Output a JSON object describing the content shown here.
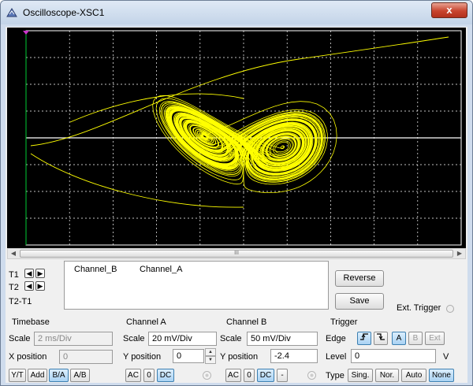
{
  "window": {
    "title": "Oscilloscope-XSC1",
    "close_label": "x"
  },
  "scope": {
    "background": "#000000",
    "trace_color": "#ffff00",
    "grid_color": "#ffffff",
    "marker_color": "#00cc33"
  },
  "scrollbar": {
    "thumb_grip": "III"
  },
  "cursors": {
    "t1_label": "T1",
    "t2_label": "T2",
    "t2t1_label": "T2-T1"
  },
  "readout": {
    "col_b": "Channel_B",
    "col_a": "Channel_A"
  },
  "buttons": {
    "reverse": "Reverse",
    "save": "Save"
  },
  "ext_trigger_label": "Ext. Trigger",
  "timebase": {
    "title": "Timebase",
    "scale_label": "Scale",
    "scale_value": "2 ms/Div",
    "xpos_label": "X position",
    "xpos_value": "0",
    "modes": [
      "Y/T",
      "Add",
      "B/A",
      "A/B"
    ]
  },
  "channel_a": {
    "title": "Channel A",
    "scale_label": "Scale",
    "scale_value": "20 mV/Div",
    "ypos_label": "Y position",
    "ypos_value": "0",
    "coupling": [
      "AC",
      "0",
      "DC"
    ]
  },
  "channel_b": {
    "title": "Channel B",
    "scale_label": "Scale",
    "scale_value": "50 mV/Div",
    "ypos_label": "Y position",
    "ypos_value": "-2.4",
    "coupling": [
      "AC",
      "0",
      "DC",
      "-"
    ]
  },
  "trigger": {
    "title": "Trigger",
    "edge_label": "Edge",
    "edge_buttons": [
      "A",
      "B",
      "Ext"
    ],
    "level_label": "Level",
    "level_value": "0",
    "level_unit": "V",
    "type_label": "Type",
    "types": [
      "Sing.",
      "Nor.",
      "Auto",
      "None"
    ]
  }
}
